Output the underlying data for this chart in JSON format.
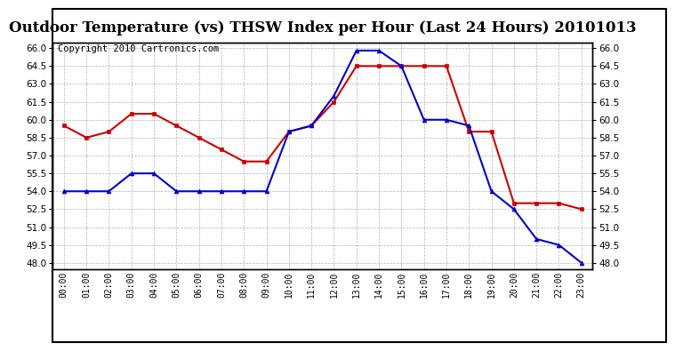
{
  "title": "Outdoor Temperature (vs) THSW Index per Hour (Last 24 Hours) 20101013",
  "copyright": "Copyright 2010 Cartronics.com",
  "hours": [
    "00:00",
    "01:00",
    "02:00",
    "03:00",
    "04:00",
    "05:00",
    "06:00",
    "07:00",
    "08:00",
    "09:00",
    "10:00",
    "11:00",
    "12:00",
    "13:00",
    "14:00",
    "15:00",
    "16:00",
    "17:00",
    "18:00",
    "19:00",
    "20:00",
    "21:00",
    "22:00",
    "23:00"
  ],
  "temp": [
    59.5,
    58.5,
    59.0,
    60.5,
    60.5,
    59.5,
    58.5,
    57.5,
    56.5,
    56.5,
    59.0,
    59.5,
    61.5,
    64.5,
    64.5,
    64.5,
    64.5,
    64.5,
    59.0,
    59.0,
    53.0,
    53.0,
    53.0,
    52.5
  ],
  "thsw": [
    54.0,
    54.0,
    54.0,
    55.5,
    55.5,
    54.0,
    54.0,
    54.0,
    54.0,
    54.0,
    59.0,
    59.5,
    62.0,
    65.8,
    65.8,
    64.5,
    60.0,
    60.0,
    59.5,
    54.0,
    52.5,
    50.0,
    49.5,
    48.0
  ],
  "ylim": [
    47.5,
    66.5
  ],
  "yticks": [
    48.0,
    49.5,
    51.0,
    52.5,
    54.0,
    55.5,
    57.0,
    58.5,
    60.0,
    61.5,
    63.0,
    64.5,
    66.0
  ],
  "temp_color": "#cc0000",
  "thsw_color": "#0000cc",
  "bg_color": "#ffffff",
  "grid_color": "#aaaaaa",
  "title_fontsize": 12,
  "copyright_fontsize": 7.5
}
